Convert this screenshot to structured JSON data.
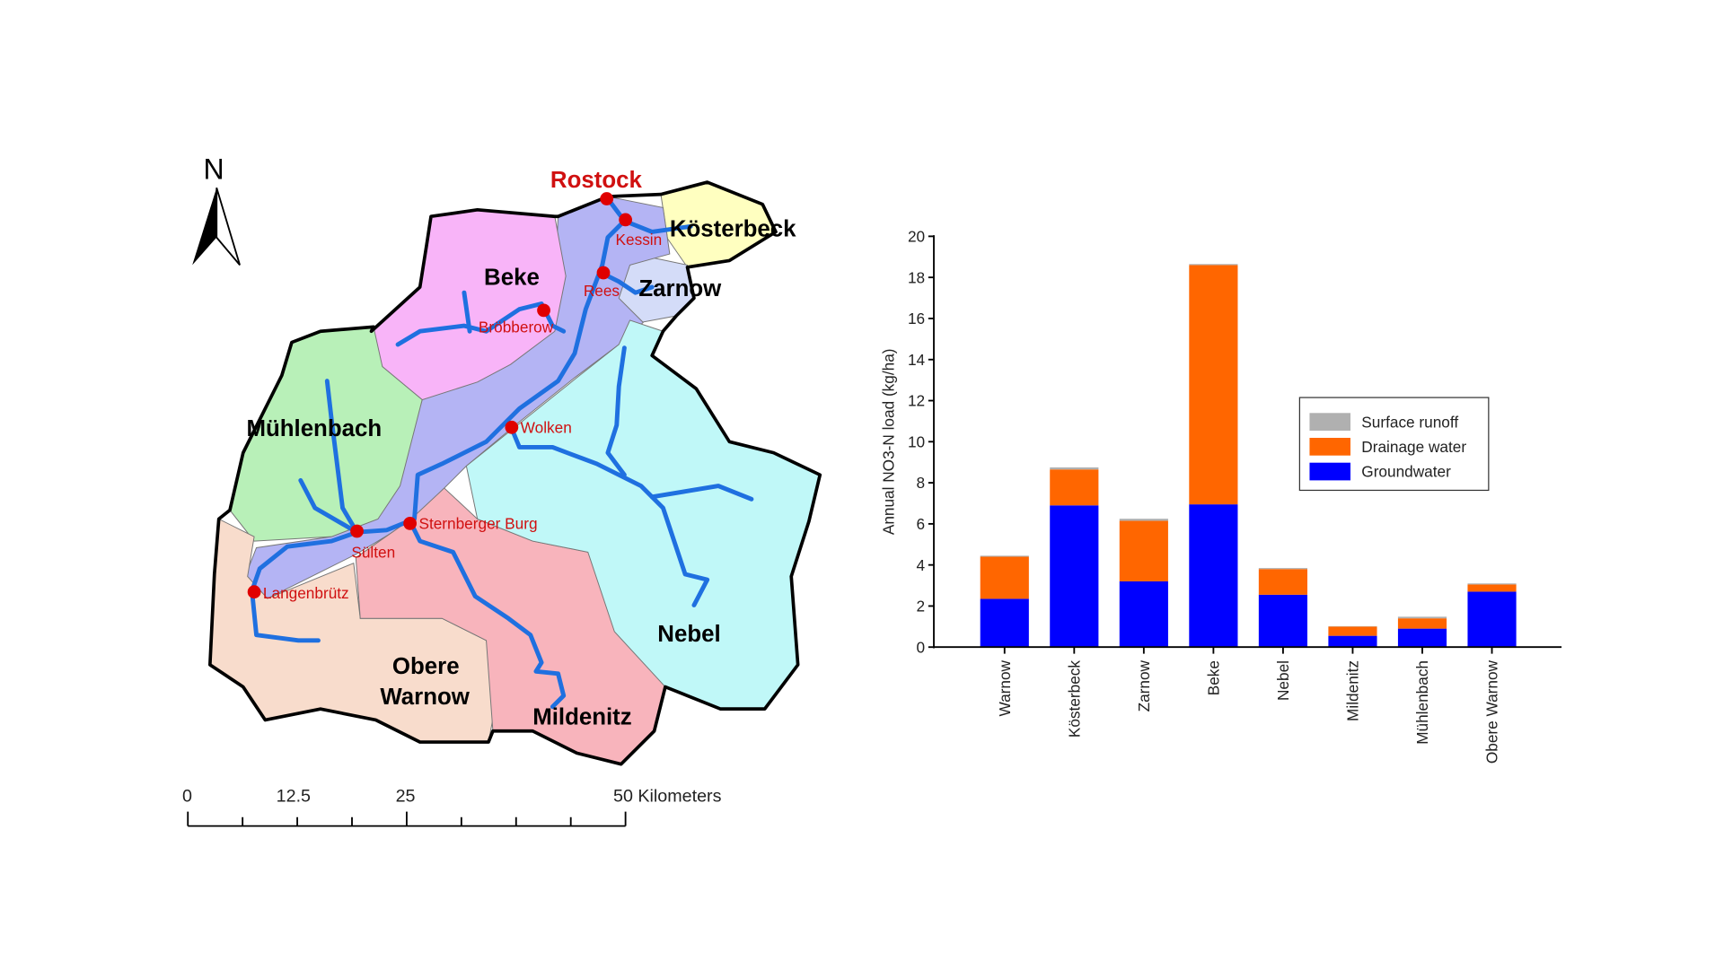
{
  "map": {
    "north_label": "N",
    "regions": [
      {
        "name": "Kösterbeck",
        "color": "#ffffc0"
      },
      {
        "name": "Zarnow",
        "color": "#d4dcf8"
      },
      {
        "name": "Warnow",
        "color": "#b4b4f4"
      },
      {
        "name": "Beke",
        "color": "#f8b4f8"
      },
      {
        "name": "Mühlenbach",
        "color": "#b8f0b8"
      },
      {
        "name": "Obere Warnow",
        "color": "#f8dccc"
      },
      {
        "name": "Mildenitz",
        "color": "#f8b4bc"
      },
      {
        "name": "Nebel",
        "color": "#c0f8f8"
      }
    ],
    "region_labels": {
      "koesterbeck": "Kösterbeck",
      "zarnow": "Zarnow",
      "beke": "Beke",
      "muehlenbach": "Mühlenbach",
      "obere": "Obere",
      "warnow": "Warnow",
      "mildenitz": "Mildenitz",
      "nebel": "Nebel"
    },
    "cities": {
      "rostock": "Rostock",
      "kessin": "Kessin",
      "rees": "Rees",
      "bruebberow": "Bröbberow",
      "wolken": "Wolken",
      "sternberger_burg": "Sternberger Burg",
      "buetzow": "Sülten",
      "langenbruetz": "Langenbrütz"
    },
    "scale_bar": {
      "labels": [
        "0",
        "12.5",
        "25",
        "50 Kilometers"
      ]
    },
    "colors": {
      "river": "#1f70e0",
      "city": "#e00000",
      "city_label": "#d01010"
    }
  },
  "chart_data": {
    "type": "bar",
    "stacked": true,
    "title": "",
    "xlabel": "",
    "ylabel": "Annual NO3-N load (kg/ha)",
    "ylim": [
      0,
      20
    ],
    "yticks": [
      "0",
      "2",
      "4",
      "6",
      "8",
      "10",
      "12",
      "14",
      "16",
      "18",
      "20"
    ],
    "categories": [
      "Warnow",
      "Kösterbeck",
      "Zarnow",
      "Beke",
      "Nebel",
      "Mildenitz",
      "Mühlenbach",
      "Obere Warnow"
    ],
    "series": [
      {
        "name": "Groundwater",
        "color": "#0000ff",
        "values": [
          2.35,
          6.9,
          3.2,
          6.95,
          2.55,
          0.55,
          0.9,
          2.7
        ]
      },
      {
        "name": "Drainage water",
        "color": "#ff6600",
        "values": [
          2.05,
          1.75,
          2.95,
          11.65,
          1.25,
          0.45,
          0.5,
          0.35
        ]
      },
      {
        "name": "Surface runoff",
        "color": "#b0b0b0",
        "values": [
          0.05,
          0.1,
          0.1,
          0.05,
          0.05,
          0.02,
          0.08,
          0.05
        ]
      }
    ],
    "legend": {
      "placement": "center-right",
      "order": [
        "Surface runoff",
        "Drainage water",
        "Groundwater"
      ]
    },
    "grid": false
  }
}
